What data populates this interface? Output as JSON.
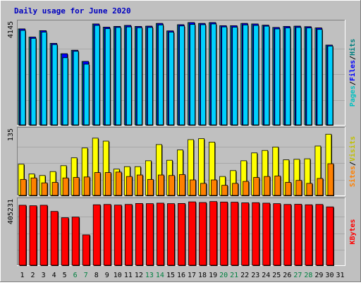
{
  "chart_data": {
    "title": "Daily usage for June 2020",
    "type": "bar",
    "days": [
      "1",
      "2",
      "3",
      "4",
      "5",
      "6",
      "7",
      "8",
      "9",
      "10",
      "11",
      "12",
      "13",
      "14",
      "15",
      "16",
      "17",
      "18",
      "19",
      "20",
      "21",
      "22",
      "23",
      "24",
      "25",
      "26",
      "27",
      "28",
      "29",
      "30",
      "31"
    ],
    "weekend_days": [
      "6",
      "7",
      "13",
      "14",
      "20",
      "21",
      "27",
      "28"
    ],
    "colors": {
      "title": "#0000c0",
      "background": "#c0c0c0",
      "plot": "#c0c0c0",
      "hits": "#00c0c0",
      "files": "#0000ff",
      "pages": "#00d0ff",
      "visits": "#ffff00",
      "sites": "#ff8000",
      "kbytes": "#ff0000",
      "weekend": "#008040",
      "weekday": "#000000"
    },
    "panels": [
      {
        "name": "hits-files-pages",
        "ymax_label": "4145",
        "ymax": 4145,
        "legend": [
          {
            "label": "Pages",
            "color": "#00c0c0"
          },
          {
            "label": "/",
            "color": "#000000"
          },
          {
            "label": "Files",
            "color": "#0000ff"
          },
          {
            "label": "/",
            "color": "#000000"
          },
          {
            "label": "Hits",
            "color": "#008080"
          }
        ],
        "series": [
          {
            "name": "Hits",
            "color": "#00c0c0",
            "values": [
              3890,
              3560,
              3820,
              3310,
              2890,
              3030,
              2580,
              4090,
              3960,
              3990,
              4030,
              3990,
              4000,
              4110,
              3810,
              4060,
              4145,
              4110,
              4145,
              4020,
              4020,
              4110,
              4090,
              4040,
              3950,
              3990,
              4000,
              3980,
              3930,
              3240,
              0
            ]
          },
          {
            "name": "Files",
            "color": "#0000ff",
            "values": [
              3890,
              3560,
              3820,
              3310,
              2890,
              3030,
              2580,
              4090,
              3960,
              3990,
              4030,
              3990,
              4000,
              4110,
              3810,
              4060,
              4145,
              4110,
              4145,
              4020,
              4020,
              4110,
              4090,
              4040,
              3950,
              3990,
              4000,
              3980,
              3930,
              3240,
              0
            ]
          },
          {
            "name": "Pages",
            "color": "#00d0ff",
            "values": [
              3830,
              3510,
              3760,
              3260,
              2730,
              2990,
              2470,
              4030,
              3900,
              3950,
              3970,
              3940,
              3950,
              4050,
              3760,
              4010,
              4070,
              4060,
              4090,
              3970,
              3960,
              4050,
              4030,
              4000,
              3890,
              3930,
              3950,
              3930,
              3870,
              3200,
              0
            ]
          }
        ]
      },
      {
        "name": "visits-sites",
        "ymax_label": "135",
        "ymax": 135,
        "legend": [
          {
            "label": "Sites",
            "color": "#ff8000"
          },
          {
            "label": "/",
            "color": "#000000"
          },
          {
            "label": "Visits",
            "color": "#c0c000"
          }
        ],
        "series": [
          {
            "name": "Visits",
            "color": "#ffff00",
            "values": [
              65,
              45,
              42,
              50,
              62,
              78,
              98,
              118,
              112,
              55,
              60,
              60,
              72,
              105,
              73,
              94,
              115,
              117,
              110,
              40,
              52,
              72,
              88,
              93,
              100,
              74,
              75,
              76,
              102,
              126,
              0
            ]
          },
          {
            "name": "Sites",
            "color": "#ff8000",
            "values": [
              34,
              37,
              27,
              28,
              37,
              38,
              39,
              48,
              48,
              49,
              40,
              43,
              34,
              43,
              42,
              44,
              33,
              26,
              33,
              22,
              26,
              30,
              38,
              40,
              41,
              28,
              32,
              26,
              36,
              66,
              0
            ]
          }
        ]
      },
      {
        "name": "kbytes",
        "ymax_label": "405231",
        "ymax": 405231,
        "legend": [
          {
            "label": "KBytes",
            "color": "#ff0000"
          }
        ],
        "series": [
          {
            "name": "KBytes",
            "color": "#ff0000",
            "values": [
              375000,
              372000,
              375000,
              337000,
              298000,
              302000,
              192000,
              378000,
              380000,
              376000,
              380000,
              386000,
              385000,
              388000,
              385000,
              386000,
              396000,
              392000,
              398000,
              395000,
              394000,
              390000,
              391000,
              388000,
              385000,
              380000,
              381000,
              378000,
              380000,
              365000,
              0
            ]
          }
        ]
      }
    ]
  }
}
